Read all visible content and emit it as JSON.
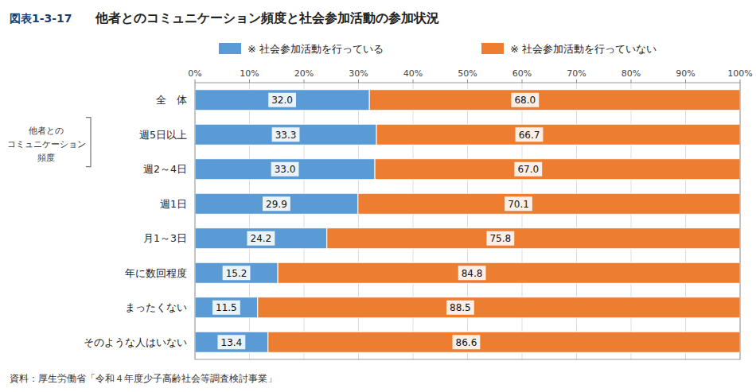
{
  "chart_data": {
    "type": "bar",
    "orientation": "horizontal",
    "stacked": true,
    "data_labels": true,
    "grid": true,
    "legend": "top",
    "title": "他者とのコミュニケーション頻度と社会参加活動の参加状況",
    "annotations": [
      "図表1-3-17",
      "資料：厚生労働省「令和４年度少子高齢社会等調査検討事業」"
    ],
    "ylabel": [
      "他者との",
      "コミュニケーション",
      "頻度"
    ],
    "categories": [
      "全　体",
      "週5日以上",
      "週2～4日",
      "週1日",
      "月1～3日",
      "年に数回程度",
      "まったくない",
      "そのような人はいない"
    ],
    "series": [
      {
        "name": "※ 社会参加活動を行っている",
        "color": "#5B9BD5",
        "values": [
          32.0,
          33.3,
          33.0,
          29.9,
          24.2,
          15.2,
          11.5,
          13.4
        ],
        "value_labels": [
          "32.0",
          "33.3",
          "33.0",
          "29.9",
          "24.2",
          "15.2",
          "11.5",
          "13.4"
        ]
      },
      {
        "name": "※ 社会参加活動を行っていない",
        "color": "#ED7D31",
        "values": [
          68.0,
          66.7,
          67.0,
          70.1,
          75.8,
          84.8,
          88.5,
          86.6
        ],
        "value_labels": [
          "68.0",
          "66.7",
          "67.0",
          "70.1",
          "75.8",
          "84.8",
          "88.5",
          "86.6"
        ]
      }
    ],
    "xlim": [
      0,
      100
    ],
    "xticks": [
      {
        "value": 0,
        "label": "0%"
      },
      {
        "value": 10,
        "label": "10%"
      },
      {
        "value": 20,
        "label": "20%"
      },
      {
        "value": 30,
        "label": "30%"
      },
      {
        "value": 40,
        "label": "40%"
      },
      {
        "value": 50,
        "label": "50%"
      },
      {
        "value": 60,
        "label": "60%"
      },
      {
        "value": 70,
        "label": "70%"
      },
      {
        "value": 80,
        "label": "80%"
      },
      {
        "value": 90,
        "label": "90%"
      },
      {
        "value": 100,
        "label": "100%"
      }
    ]
  }
}
